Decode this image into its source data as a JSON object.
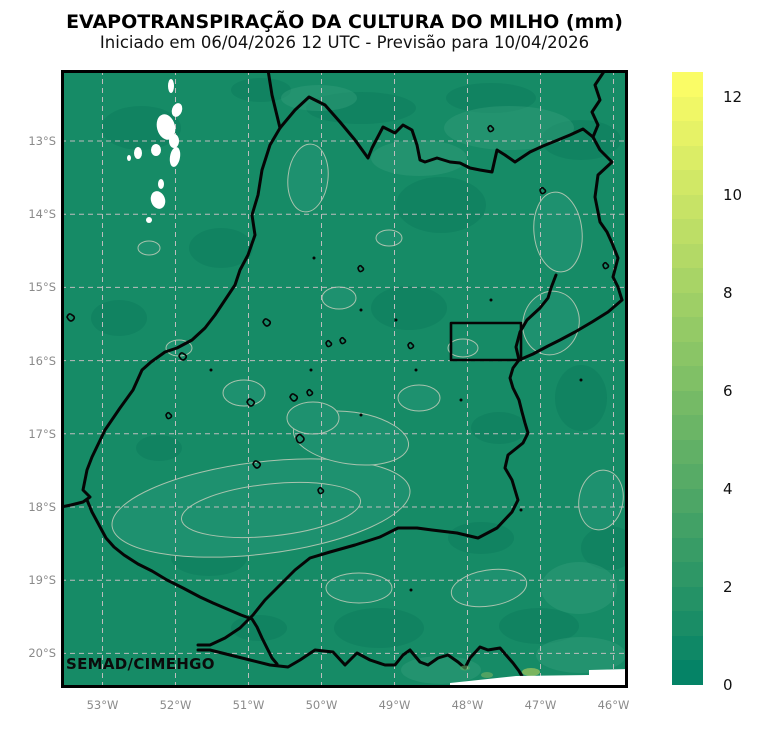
{
  "header": {
    "title": "EVAPOTRANSPIRAÇÃO DA CULTURA DO MILHO (mm)",
    "subtitle": "Iniciado em 06/04/2026 12 UTC - Previsão para 10/04/2026"
  },
  "map": {
    "credit": "SEMAD/CIMEHGO",
    "base_color": "#168b66",
    "nodata_color": "#ffffff",
    "boundary_color": "#050505",
    "grid_color": "#bdbdbd",
    "contour_color": "#a9c3ae"
  },
  "axes": {
    "lat_labels": [
      "13°S",
      "14°S",
      "15°S",
      "16°S",
      "17°S",
      "18°S",
      "19°S",
      "20°S"
    ],
    "lon_labels": [
      "53°W",
      "52°W",
      "51°W",
      "50°W",
      "49°W",
      "48°W",
      "47°W",
      "46°W"
    ],
    "label_color": "#8a8a8a"
  },
  "colorbar": {
    "min": 0,
    "max": 12.5,
    "step": 0.5,
    "tick_values": [
      0,
      2,
      4,
      6,
      8,
      10,
      12
    ],
    "bottom_color": "#008066",
    "top_color": "#ffff66"
  }
}
